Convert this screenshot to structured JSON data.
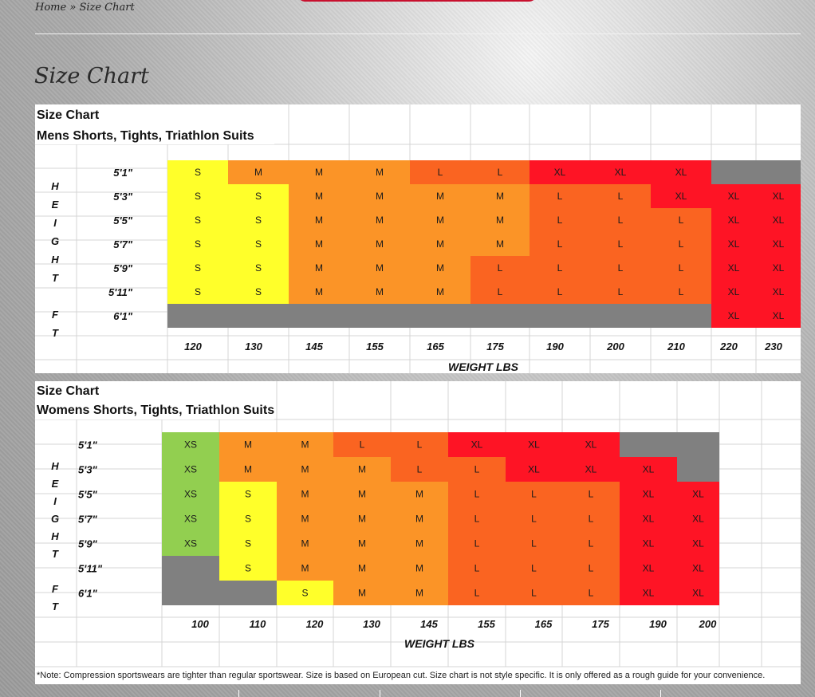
{
  "breadcrumb": {
    "home": "Home",
    "separator": "»",
    "current": "Size Chart"
  },
  "page": {
    "title": "Size Chart"
  },
  "colors": {
    "XS": "#92cf50",
    "S": "#ffff2a",
    "M": "#fb9427",
    "L": "#fa6421",
    "XL": "#fe1425",
    "none": "#808080",
    "grid": "#d4d4d4"
  },
  "chart_data": [
    {
      "type": "table",
      "title": "Size Chart",
      "subtitle": "Mens Shorts, Tights, Triathlon Suits",
      "ylabel": [
        "H",
        "E",
        "I",
        "G",
        "H",
        "T",
        "",
        "F",
        "T"
      ],
      "xlabel": "WEIGHT   LBS",
      "heights": [
        "5'1\"",
        "5'3\"",
        "5'5\"",
        "5'7\"",
        "5'9\"",
        "5'11\"",
        "6'1\""
      ],
      "weights": [
        "120",
        "130",
        "145",
        "155",
        "165",
        "175",
        "190",
        "200",
        "210",
        "220",
        "230"
      ],
      "sizes": [
        [
          "S",
          "M",
          "M",
          "M",
          "L",
          "L",
          "XL",
          "XL",
          "XL",
          "-",
          "-"
        ],
        [
          "S",
          "S",
          "M",
          "M",
          "M",
          "M",
          "L",
          "L",
          "XL",
          "XL",
          "XL"
        ],
        [
          "S",
          "S",
          "M",
          "M",
          "M",
          "M",
          "L",
          "L",
          "L",
          "XL",
          "XL"
        ],
        [
          "S",
          "S",
          "M",
          "M",
          "M",
          "M",
          "L",
          "L",
          "L",
          "XL",
          "XL"
        ],
        [
          "S",
          "S",
          "M",
          "M",
          "M",
          "L",
          "L",
          "L",
          "L",
          "XL",
          "XL"
        ],
        [
          "S",
          "S",
          "M",
          "M",
          "M",
          "L",
          "L",
          "L",
          "L",
          "XL",
          "XL"
        ],
        [
          "-",
          "-",
          "-",
          "-",
          "-",
          "-",
          "-",
          "-",
          "-",
          "XL",
          "XL"
        ]
      ]
    },
    {
      "type": "table",
      "title": "Size Chart",
      "subtitle": "Womens Shorts, Tights, Triathlon Suits",
      "ylabel": [
        "H",
        "E",
        "I",
        "G",
        "H",
        "T",
        "",
        "F",
        "T"
      ],
      "xlabel": "WEIGHT  LBS",
      "heights": [
        "5'1\"",
        "5'3\"",
        "5'5\"",
        "5'7\"",
        "5'9\"",
        "5'11\"",
        "6'1\""
      ],
      "weights": [
        "100",
        "110",
        "120",
        "130",
        "145",
        "155",
        "165",
        "175",
        "190",
        "200"
      ],
      "sizes": [
        [
          "XS",
          "M",
          "M",
          "L",
          "L",
          "XL",
          "XL",
          "XL",
          "-",
          "-"
        ],
        [
          "XS",
          "M",
          "M",
          "M",
          "L",
          "L",
          "XL",
          "XL",
          "XL",
          "-"
        ],
        [
          "XS",
          "S",
          "M",
          "M",
          "M",
          "L",
          "L",
          "L",
          "XL",
          "XL"
        ],
        [
          "XS",
          "S",
          "M",
          "M",
          "M",
          "L",
          "L",
          "L",
          "XL",
          "XL"
        ],
        [
          "XS",
          "S",
          "M",
          "M",
          "M",
          "L",
          "L",
          "L",
          "XL",
          "XL"
        ],
        [
          "-",
          "S",
          "M",
          "M",
          "M",
          "L",
          "L",
          "L",
          "XL",
          "XL"
        ],
        [
          "-",
          "-",
          "S",
          "M",
          "M",
          "L",
          "L",
          "L",
          "XL",
          "XL"
        ]
      ],
      "note": "*Note: Compression sportswears are tighter than regular sportswear. Size is based on European cut. Size chart is not style specific. It is only offered as a rough guide for your convenience."
    }
  ]
}
